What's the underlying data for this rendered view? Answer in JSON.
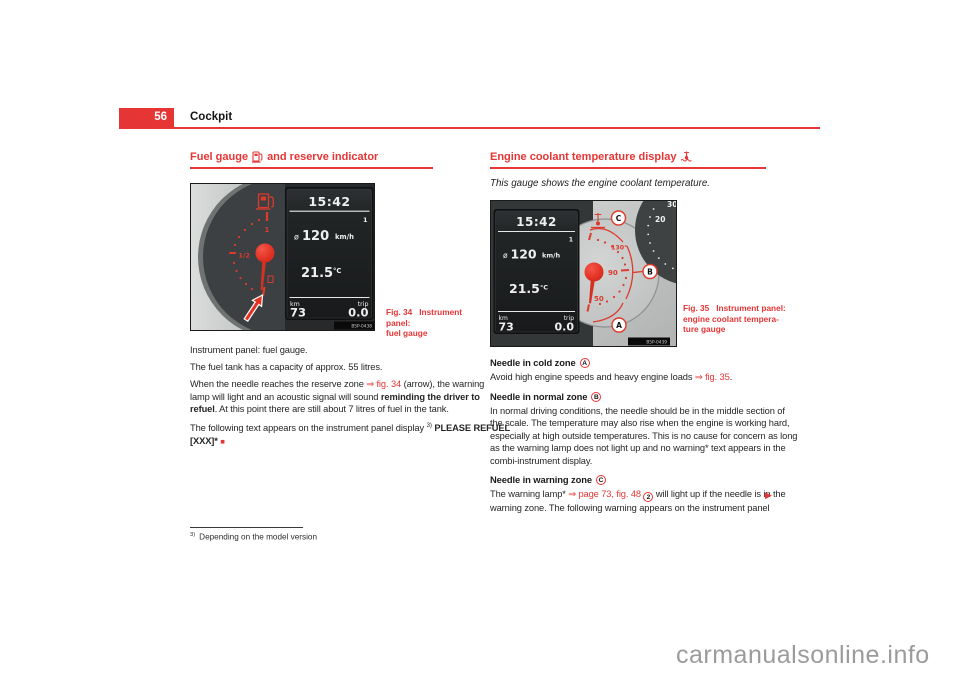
{
  "colors": {
    "red": "#e63535",
    "figure_red": "#dd3a2d",
    "lcd_text": "#eef0ef"
  },
  "header": {
    "page_number": "56",
    "title": "Cockpit"
  },
  "watermark": "carmanualsonline.info",
  "footnote": {
    "marker": "3)",
    "text": "Depending on the model version"
  },
  "lcd": {
    "time": "15:42",
    "indicator": "1",
    "avg_symbol": "ø",
    "speed": "120",
    "speed_unit": "km/h",
    "temp": "21.5",
    "temp_unit": "°C",
    "odo_label": "km",
    "odo": "73",
    "trip_label": "trip",
    "trip": "0.0"
  },
  "left": {
    "heading": {
      "pre": "Fuel gauge",
      "post": "and reserve indicator"
    },
    "figure": {
      "caption": [
        "Fig. 34   Instrument panel:",
        "fuel gauge"
      ],
      "code": "B5P-0438",
      "scale": {
        "full": "1",
        "half": "1/2"
      }
    },
    "paragraphs": [
      [
        [
          {
            "t": "Instrument panel: fuel gauge."
          }
        ]
      ],
      [
        [
          {
            "t": "The fuel tank has a capacity of approx. 55 litres."
          }
        ]
      ],
      [
        [
          {
            "t": "When the needle reaches the reserve zone "
          },
          {
            "t": "⇒ fig. 34",
            "s": "l"
          },
          {
            "t": " (arrow), the warning"
          }
        ],
        [
          {
            "t": "lamp will light and an acoustic signal will sound "
          },
          {
            "t": "reminding the driver to",
            "s": "b"
          }
        ],
        [
          {
            "t": "refuel",
            "s": "b"
          },
          {
            "t": ". At this point there are still about 7 litres of fuel in the tank."
          }
        ]
      ],
      [
        [
          {
            "t": "The following text appears on the instrument panel display "
          },
          {
            "t": "3)",
            "s": "sup"
          },
          {
            "t": " "
          },
          {
            "t": "PLEASE REFUEL",
            "s": "b"
          }
        ],
        [
          {
            "t": "[XXX]*",
            "s": "b"
          },
          {
            "t": " "
          },
          {
            "t": "■",
            "s": "m"
          }
        ]
      ]
    ]
  },
  "right": {
    "heading": {
      "pre": "Engine coolant temperature display"
    },
    "lead": "This gauge shows the engine coolant temperature.",
    "figure": {
      "caption": [
        "Fig. 35   Instrument panel:",
        "engine coolant tempera-",
        "ture gauge"
      ],
      "code": "B5P-0439",
      "scale": {
        "high": "130°",
        "mid": "90",
        "low": "50"
      },
      "tacho": {
        "t30": "30",
        "t20": "20"
      },
      "callouts": {
        "a": "A",
        "b": "B",
        "c": "C"
      }
    },
    "sections": [
      {
        "heading": "Needle in cold zone",
        "callout": "A",
        "body": [
          [
            {
              "t": "Avoid high engine speeds and heavy engine loads "
            },
            {
              "t": "⇒ fig. 35",
              "s": "l"
            },
            {
              "t": "."
            }
          ]
        ]
      },
      {
        "heading": "Needle in normal zone",
        "callout": "B",
        "body": [
          [
            {
              "t": "In normal driving conditions, the needle should be in the middle section of"
            }
          ],
          [
            {
              "t": "the scale. The temperature may also rise when the engine is working hard,"
            }
          ],
          [
            {
              "t": "especially at high outside temperatures. This is no cause for concern as long"
            }
          ],
          [
            {
              "t": "as the warning lamp does not light up and no warning* text appears in the"
            }
          ],
          [
            {
              "t": "combi-instrument display."
            }
          ]
        ]
      },
      {
        "heading": "Needle in warning zone",
        "callout": "C",
        "body": [
          [
            {
              "t": "The warning lamp* "
            },
            {
              "t": "⇒ page 73, fig. 48",
              "s": "l"
            },
            {
              "t": " "
            },
            {
              "t": "2",
              "s": "c"
            },
            {
              "t": " will light up if the needle is in the"
            }
          ],
          [
            {
              "t": "warning zone. The following warning appears on the instrument panel"
            }
          ]
        ]
      }
    ],
    "continuation_mark": "▶"
  }
}
